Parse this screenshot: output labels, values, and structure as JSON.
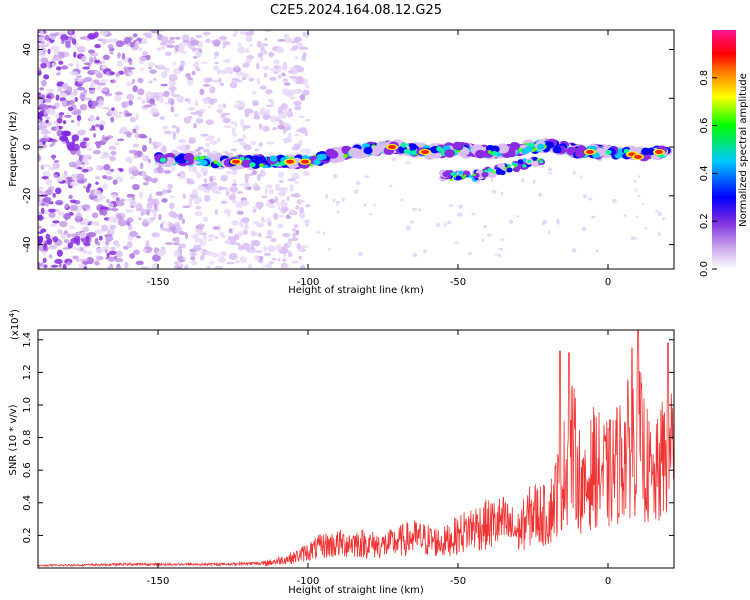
{
  "title": "C2E5.2024.164.08.12.G25",
  "chart_data": [
    {
      "type": "heatmap",
      "xlabel": "Height of straight line (km)",
      "ylabel": "Frequency (Hz)",
      "xlim": [
        -190,
        22
      ],
      "ylim": [
        -50,
        48
      ],
      "x_ticks": [
        -150,
        -100,
        -50,
        0
      ],
      "y_ticks": [
        -40,
        -20,
        0,
        20,
        40
      ],
      "colorbar": {
        "label": "Normalized spectral amplitude",
        "range": [
          0.0,
          1.0
        ],
        "ticks": [
          0.0,
          0.2,
          0.4,
          0.6,
          0.8
        ],
        "colormap": [
          "#ffffff",
          "#8a2be2",
          "#0000ff",
          "#00c8ff",
          "#00ff00",
          "#ffff00",
          "#ff8000",
          "#ff0000",
          "#ff1493"
        ]
      },
      "ridge": {
        "points": [
          [
            -150,
            -5
          ],
          [
            -130,
            -6
          ],
          [
            -120,
            -6
          ],
          [
            -110,
            -6
          ],
          [
            -100,
            -6
          ],
          [
            -90,
            -3
          ],
          [
            -80,
            -1
          ],
          [
            -70,
            0
          ],
          [
            -60,
            -2
          ],
          [
            -50,
            -1
          ],
          [
            -40,
            -2
          ],
          [
            -30,
            -1
          ],
          [
            -20,
            1
          ],
          [
            -10,
            -2
          ],
          [
            0,
            -2
          ],
          [
            10,
            -3
          ],
          [
            20,
            -2
          ]
        ],
        "peaks": [
          [
            -124,
            -6
          ],
          [
            -106,
            -6
          ],
          [
            -101,
            -6
          ],
          [
            -72,
            0
          ],
          [
            -61,
            -2
          ],
          [
            -6,
            -2
          ],
          [
            8,
            -3
          ],
          [
            10,
            -4
          ],
          [
            17,
            -2
          ]
        ],
        "lower_branch": [
          [
            -55,
            -12
          ],
          [
            -45,
            -12
          ],
          [
            -35,
            -9
          ],
          [
            -28,
            -7
          ],
          [
            -22,
            -6
          ]
        ]
      },
      "noise_region_x": [
        -190,
        -110
      ]
    },
    {
      "type": "line",
      "xlabel": "Height of straight line (km)",
      "ylabel": "SNR (10 * v/v)",
      "y_scale_label": "(x10",
      "y_scale_exp": "4",
      "y_scale_close": ")",
      "xlim": [
        -190,
        22
      ],
      "ylim": [
        0,
        1.46
      ],
      "x_ticks": [
        -150,
        -100,
        -50,
        0
      ],
      "y_ticks": [
        0.2,
        0.4,
        0.6,
        0.8,
        1.0,
        1.2,
        1.4
      ],
      "color": "#ee3333",
      "envelope": [
        [
          -190,
          0.02
        ],
        [
          -160,
          0.03
        ],
        [
          -130,
          0.03
        ],
        [
          -115,
          0.04
        ],
        [
          -105,
          0.1
        ],
        [
          -95,
          0.22
        ],
        [
          -85,
          0.25
        ],
        [
          -75,
          0.22
        ],
        [
          -65,
          0.3
        ],
        [
          -55,
          0.25
        ],
        [
          -45,
          0.4
        ],
        [
          -35,
          0.45
        ],
        [
          -30,
          0.35
        ],
        [
          -25,
          0.55
        ],
        [
          -20,
          0.5
        ],
        [
          -15,
          0.9
        ],
        [
          -12,
          1.2
        ],
        [
          -8,
          0.7
        ],
        [
          -5,
          1.0
        ],
        [
          0,
          0.9
        ],
        [
          5,
          1.1
        ],
        [
          10,
          1.3
        ],
        [
          15,
          0.8
        ],
        [
          20,
          1.2
        ],
        [
          22,
          1.3
        ]
      ],
      "peaks": [
        [
          -16,
          1.33
        ],
        [
          -13,
          1.32
        ],
        [
          8,
          1.35
        ],
        [
          10,
          1.46
        ],
        [
          20,
          1.38
        ]
      ]
    }
  ]
}
